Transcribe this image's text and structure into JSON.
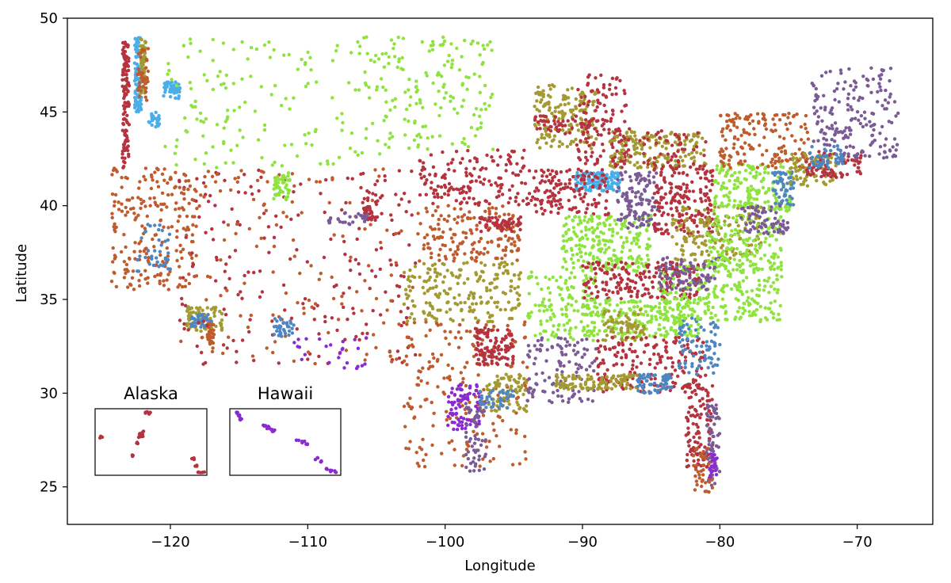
{
  "chart_data": {
    "type": "scatter",
    "title": "",
    "xlabel": "Longitude",
    "ylabel": "Latitude",
    "xlim": [
      -127.5,
      -64.5
    ],
    "ylim": [
      23,
      50
    ],
    "xticks": [
      -120,
      -110,
      -100,
      -90,
      -80,
      -70
    ],
    "xtick_labels": [
      "−120",
      "−110",
      "−100",
      "−90",
      "−80",
      "−70"
    ],
    "yticks": [
      25,
      30,
      35,
      40,
      45,
      50
    ],
    "ytick_labels": [
      "25",
      "30",
      "35",
      "40",
      "45",
      "50"
    ],
    "grid": false,
    "legend": "none",
    "point_colors": [
      "#b5333f",
      "#bf5b2c",
      "#a39a32",
      "#8fe33f",
      "#7b5b95",
      "#4f86c2",
      "#4aaee8",
      "#8a2bd1"
    ],
    "clusters": [
      {
        "lon": [
          -123.5,
          -123.0
        ],
        "lat": [
          42.0,
          48.8
        ],
        "color": "#b5333f",
        "n": 120
      },
      {
        "lon": [
          -122.6,
          -122.1
        ],
        "lat": [
          45.0,
          49.0
        ],
        "color": "#4aaee8",
        "n": 90
      },
      {
        "lon": [
          -122.2,
          -121.8
        ],
        "lat": [
          46.0,
          49.0
        ],
        "color": "#a39a32",
        "n": 50
      },
      {
        "lon": [
          -122.4,
          -121.6
        ],
        "lat": [
          45.5,
          48.5
        ],
        "color": "#bf5b2c",
        "n": 40
      },
      {
        "lon": [
          -120.5,
          -119.3
        ],
        "lat": [
          45.7,
          46.6
        ],
        "color": "#4aaee8",
        "n": 50
      },
      {
        "lon": [
          -121.6,
          -120.8
        ],
        "lat": [
          44.2,
          45.0
        ],
        "color": "#4aaee8",
        "n": 25
      },
      {
        "lon": [
          -120.5,
          -104.5
        ],
        "lat": [
          42.0,
          49.0
        ],
        "color": "#8fe33f",
        "n": 160
      },
      {
        "lon": [
          -104.5,
          -96.5
        ],
        "lat": [
          43.0,
          49.0
        ],
        "color": "#8fe33f",
        "n": 150
      },
      {
        "lon": [
          -124.3,
          -118.0
        ],
        "lat": [
          35.5,
          42.0
        ],
        "color": "#bf5b2c",
        "n": 220
      },
      {
        "lon": [
          -122.5,
          -120.0
        ],
        "lat": [
          36.5,
          39.0
        ],
        "color": "#4f86c2",
        "n": 40
      },
      {
        "lon": [
          -118.8,
          -116.2
        ],
        "lat": [
          33.3,
          34.6
        ],
        "color": "#a39a32",
        "n": 80
      },
      {
        "lon": [
          -118.5,
          -117.0
        ],
        "lat": [
          33.5,
          34.2
        ],
        "color": "#4f86c2",
        "n": 40
      },
      {
        "lon": [
          -117.3,
          -116.8
        ],
        "lat": [
          32.6,
          33.8
        ],
        "color": "#bf5b2c",
        "n": 30
      },
      {
        "lon": [
          -119.5,
          -102.0
        ],
        "lat": [
          31.5,
          42.0
        ],
        "color": "#b5333f",
        "n": 200
      },
      {
        "lon": [
          -119.5,
          -102.0
        ],
        "lat": [
          31.5,
          42.0
        ],
        "color": "#bf5b2c",
        "n": 140
      },
      {
        "lon": [
          -112.5,
          -111.3
        ],
        "lat": [
          40.2,
          41.8
        ],
        "color": "#8fe33f",
        "n": 45
      },
      {
        "lon": [
          -112.5,
          -111.0
        ],
        "lat": [
          33.0,
          34.0
        ],
        "color": "#4f86c2",
        "n": 35
      },
      {
        "lon": [
          -106.0,
          -104.5
        ],
        "lat": [
          39.2,
          40.8
        ],
        "color": "#b5333f",
        "n": 40
      },
      {
        "lon": [
          -108.5,
          -105.5
        ],
        "lat": [
          39.0,
          39.7
        ],
        "color": "#7b5b95",
        "n": 30
      },
      {
        "lon": [
          -111.0,
          -105.5
        ],
        "lat": [
          31.3,
          33.0
        ],
        "color": "#8a2bd1",
        "n": 25
      },
      {
        "lon": [
          -102.0,
          -93.5
        ],
        "lat": [
          40.0,
          43.0
        ],
        "color": "#b5333f",
        "n": 160
      },
      {
        "lon": [
          -102.0,
          -94.5
        ],
        "lat": [
          37.0,
          40.0
        ],
        "color": "#bf5b2c",
        "n": 160
      },
      {
        "lon": [
          -97.5,
          -94.5
        ],
        "lat": [
          38.6,
          39.4
        ],
        "color": "#b5333f",
        "n": 60
      },
      {
        "lon": [
          -103.0,
          -94.5
        ],
        "lat": [
          33.8,
          37.0
        ],
        "color": "#a39a32",
        "n": 200
      },
      {
        "lon": [
          -103.0,
          -94.0
        ],
        "lat": [
          26.0,
          33.8
        ],
        "color": "#bf5b2c",
        "n": 200
      },
      {
        "lon": [
          -97.8,
          -95.0
        ],
        "lat": [
          31.5,
          33.5
        ],
        "color": "#b5333f",
        "n": 110
      },
      {
        "lon": [
          -99.8,
          -97.5
        ],
        "lat": [
          28.0,
          30.5
        ],
        "color": "#8a2bd1",
        "n": 80
      },
      {
        "lon": [
          -98.5,
          -97.0
        ],
        "lat": [
          25.8,
          29.5
        ],
        "color": "#7b5b95",
        "n": 60
      },
      {
        "lon": [
          -97.0,
          -94.0
        ],
        "lat": [
          29.0,
          31.0
        ],
        "color": "#a39a32",
        "n": 80
      },
      {
        "lon": [
          -97.5,
          -95.0
        ],
        "lat": [
          29.2,
          30.2
        ],
        "color": "#4f86c2",
        "n": 40
      },
      {
        "lon": [
          -94.0,
          -89.0
        ],
        "lat": [
          29.5,
          33.0
        ],
        "color": "#7b5b95",
        "n": 110
      },
      {
        "lon": [
          -94.0,
          -89.0
        ],
        "lat": [
          32.8,
          36.5
        ],
        "color": "#8fe33f",
        "n": 130
      },
      {
        "lon": [
          -93.5,
          -89.0
        ],
        "lat": [
          43.0,
          46.5
        ],
        "color": "#a39a32",
        "n": 160
      },
      {
        "lon": [
          -93.5,
          -89.0
        ],
        "lat": [
          43.8,
          44.8
        ],
        "color": "#b5333f",
        "n": 50
      },
      {
        "lon": [
          -90.5,
          -86.5
        ],
        "lat": [
          42.2,
          47.0
        ],
        "color": "#b5333f",
        "n": 130
      },
      {
        "lon": [
          -90.5,
          -87.3
        ],
        "lat": [
          40.8,
          41.8
        ],
        "color": "#4aaee8",
        "n": 140
      },
      {
        "lon": [
          -93.5,
          -88.0
        ],
        "lat": [
          39.5,
          42.0
        ],
        "color": "#b5333f",
        "n": 140
      },
      {
        "lon": [
          -91.5,
          -85.0
        ],
        "lat": [
          36.5,
          39.5
        ],
        "color": "#8fe33f",
        "n": 240
      },
      {
        "lon": [
          -88.0,
          -81.0
        ],
        "lat": [
          42.0,
          44.0
        ],
        "color": "#a39a32",
        "n": 170
      },
      {
        "lon": [
          -88.0,
          -81.0
        ],
        "lat": [
          42.0,
          44.0
        ],
        "color": "#b5333f",
        "n": 70
      },
      {
        "lon": [
          -87.5,
          -84.5
        ],
        "lat": [
          38.8,
          41.8
        ],
        "color": "#7b5b95",
        "n": 120
      },
      {
        "lon": [
          -84.8,
          -80.5
        ],
        "lat": [
          38.5,
          42.0
        ],
        "color": "#b5333f",
        "n": 180
      },
      {
        "lon": [
          -90.0,
          -81.5
        ],
        "lat": [
          35.0,
          37.0
        ],
        "color": "#b5333f",
        "n": 200
      },
      {
        "lon": [
          -90.0,
          -81.5
        ],
        "lat": [
          33.0,
          35.0
        ],
        "color": "#8fe33f",
        "n": 220
      },
      {
        "lon": [
          -88.5,
          -85.5
        ],
        "lat": [
          32.8,
          34.5
        ],
        "color": "#a39a32",
        "n": 70
      },
      {
        "lon": [
          -89.0,
          -81.0
        ],
        "lat": [
          30.0,
          33.0
        ],
        "color": "#b5333f",
        "n": 180
      },
      {
        "lon": [
          -92.0,
          -86.0
        ],
        "lat": [
          30.2,
          31.0
        ],
        "color": "#a39a32",
        "n": 110
      },
      {
        "lon": [
          -86.0,
          -83.5
        ],
        "lat": [
          30.0,
          31.0
        ],
        "color": "#4f86c2",
        "n": 70
      },
      {
        "lon": [
          -83.0,
          -80.0
        ],
        "lat": [
          31.0,
          34.0
        ],
        "color": "#4f86c2",
        "n": 80
      },
      {
        "lon": [
          -82.5,
          -80.5
        ],
        "lat": [
          26.0,
          30.5
        ],
        "color": "#b5333f",
        "n": 110
      },
      {
        "lon": [
          -81.0,
          -80.0
        ],
        "lat": [
          25.0,
          29.5
        ],
        "color": "#7b5b95",
        "n": 60
      },
      {
        "lon": [
          -82.0,
          -80.5
        ],
        "lat": [
          24.6,
          27.5
        ],
        "color": "#bf5b2c",
        "n": 40
      },
      {
        "lon": [
          -80.8,
          -80.2
        ],
        "lat": [
          25.5,
          26.8
        ],
        "color": "#8a2bd1",
        "n": 25
      },
      {
        "lon": [
          -84.5,
          -75.5
        ],
        "lat": [
          33.8,
          36.8
        ],
        "color": "#8fe33f",
        "n": 230
      },
      {
        "lon": [
          -84.5,
          -80.0
        ],
        "lat": [
          35.5,
          37.3
        ],
        "color": "#7b5b95",
        "n": 90
      },
      {
        "lon": [
          -83.5,
          -77.0
        ],
        "lat": [
          37.0,
          40.0
        ],
        "color": "#a39a32",
        "n": 150
      },
      {
        "lon": [
          -81.0,
          -75.5
        ],
        "lat": [
          36.5,
          39.5
        ],
        "color": "#8fe33f",
        "n": 160
      },
      {
        "lon": [
          -80.5,
          -74.7
        ],
        "lat": [
          39.7,
          42.3
        ],
        "color": "#8fe33f",
        "n": 180
      },
      {
        "lon": [
          -80.0,
          -73.5
        ],
        "lat": [
          42.0,
          45.0
        ],
        "color": "#bf5b2c",
        "n": 160
      },
      {
        "lon": [
          -76.2,
          -74.5
        ],
        "lat": [
          40.0,
          41.8
        ],
        "color": "#4f86c2",
        "n": 60
      },
      {
        "lon": [
          -78.5,
          -75.0
        ],
        "lat": [
          38.5,
          40.0
        ],
        "color": "#7b5b95",
        "n": 70
      },
      {
        "lon": [
          -75.0,
          -71.5
        ],
        "lat": [
          41.0,
          42.8
        ],
        "color": "#a39a32",
        "n": 80
      },
      {
        "lon": [
          -73.7,
          -69.5
        ],
        "lat": [
          41.5,
          42.9
        ],
        "color": "#b5333f",
        "n": 80
      },
      {
        "lon": [
          -73.3,
          -67.0
        ],
        "lat": [
          42.5,
          47.4
        ],
        "color": "#7b5b95",
        "n": 180
      },
      {
        "lon": [
          -73.5,
          -71.0
        ],
        "lat": [
          42.0,
          43.2
        ],
        "color": "#4f86c2",
        "n": 50
      }
    ],
    "insets": [
      {
        "title": "Alaska",
        "color": "#b5333f",
        "points": [
          [
            0.05,
            0.57
          ],
          [
            0.46,
            0.95
          ],
          [
            0.49,
            0.93
          ],
          [
            0.43,
            0.65
          ],
          [
            0.42,
            0.6
          ],
          [
            0.4,
            0.57
          ],
          [
            0.38,
            0.48
          ],
          [
            0.41,
            0.61
          ],
          [
            0.33,
            0.3
          ],
          [
            0.88,
            0.25
          ],
          [
            0.91,
            0.15
          ],
          [
            0.93,
            0.05
          ],
          [
            0.97,
            0.04
          ]
        ]
      },
      {
        "title": "Hawaii",
        "color": "#8a2bd1",
        "points": [
          [
            0.06,
            0.93
          ],
          [
            0.08,
            0.89
          ],
          [
            0.1,
            0.85
          ],
          [
            0.31,
            0.75
          ],
          [
            0.34,
            0.71
          ],
          [
            0.37,
            0.69
          ],
          [
            0.39,
            0.67
          ],
          [
            0.35,
            0.73
          ],
          [
            0.61,
            0.53
          ],
          [
            0.66,
            0.5
          ],
          [
            0.69,
            0.46
          ],
          [
            0.78,
            0.25
          ],
          [
            0.82,
            0.21
          ],
          [
            0.91,
            0.07
          ],
          [
            0.95,
            0.05
          ],
          [
            0.88,
            0.1
          ]
        ]
      }
    ]
  }
}
